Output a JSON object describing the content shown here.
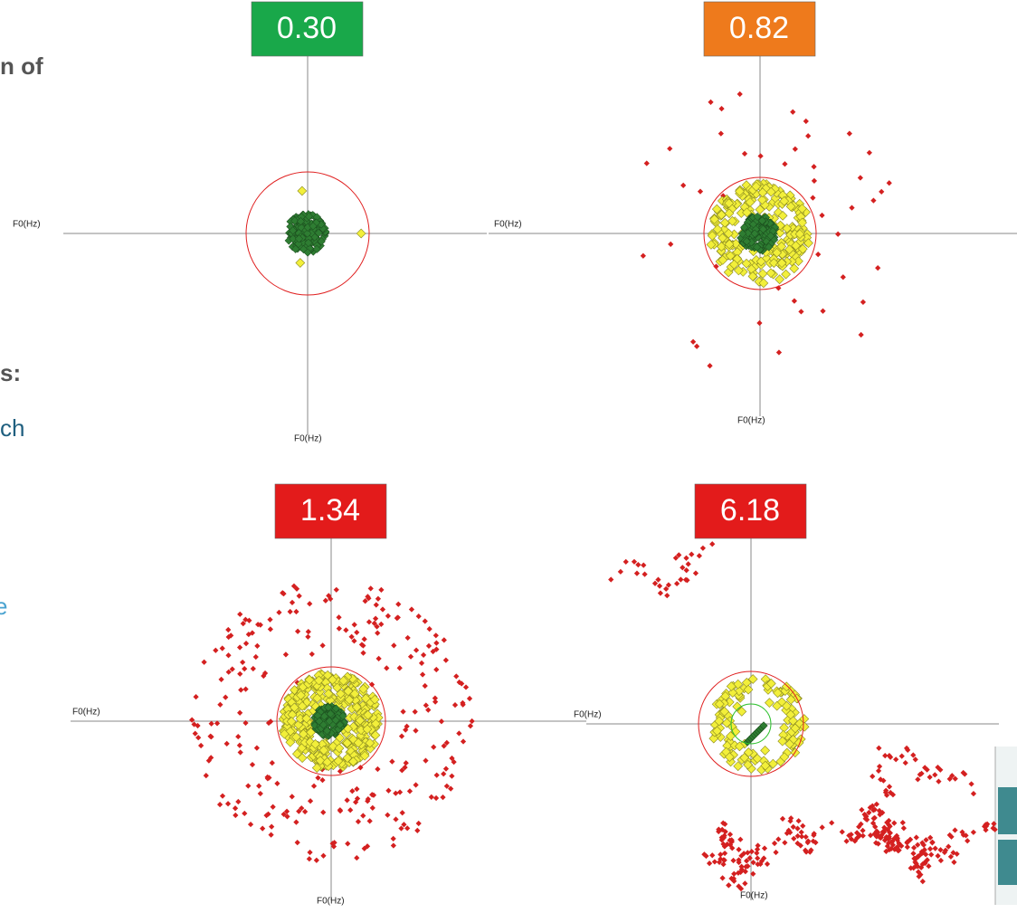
{
  "panels": [
    {
      "score": "0.30",
      "x_label": "F0(Hz)",
      "y_label": "F0(Hz)"
    },
    {
      "score": "0.82",
      "x_label": "F0(Hz)",
      "y_label": "F0(Hz)"
    },
    {
      "score": "1.34",
      "x_label": "F0(Hz)",
      "y_label": "F0(Hz)"
    },
    {
      "score": "6.18",
      "x_label": "F0(Hz)",
      "y_label": "F0(Hz)"
    }
  ],
  "fragments": [
    "n of",
    "s:",
    "ch",
    "e"
  ]
}
